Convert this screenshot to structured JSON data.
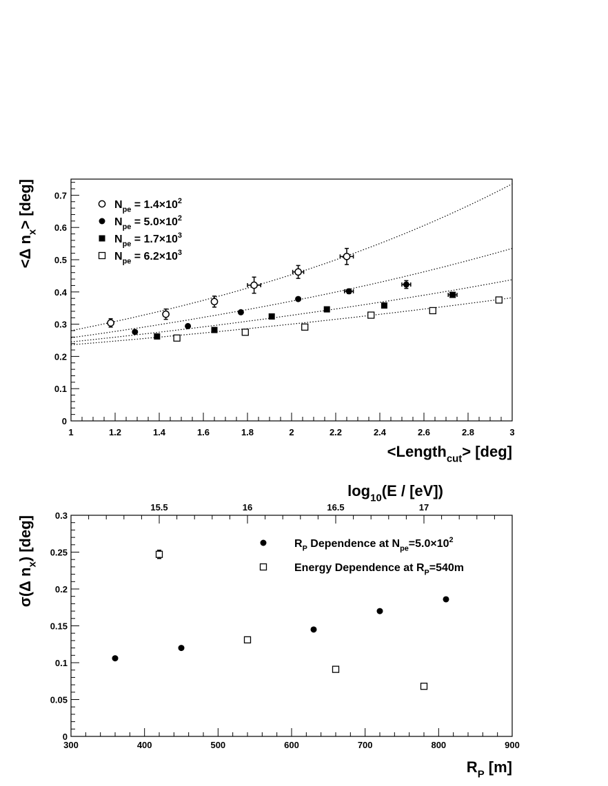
{
  "chart_data": [
    {
      "type": "scatter",
      "xlabel": "<Length_cut> [deg]",
      "ylabel": "<Δ n_x> [deg]",
      "xlim": [
        1,
        3
      ],
      "ylim": [
        0,
        0.75
      ],
      "x_ticks": [
        "1",
        "1.2",
        "1.4",
        "1.6",
        "1.8",
        "2",
        "2.2",
        "2.4",
        "2.6",
        "2.8",
        "3"
      ],
      "y_ticks": [
        "0",
        "0.1",
        "0.2",
        "0.3",
        "0.4",
        "0.5",
        "0.6",
        "0.7"
      ],
      "grid": false,
      "legend_position": "top-left",
      "series": [
        {
          "name": "N_pe = 1.4×10^2",
          "marker": "open-circle",
          "points": [
            [
              1.18,
              0.304
            ],
            [
              1.43,
              0.331
            ],
            [
              1.65,
              0.37
            ],
            [
              1.83,
              0.421
            ],
            [
              2.03,
              0.462
            ],
            [
              2.25,
              0.51
            ]
          ],
          "yerr": [
            0.013,
            0.016,
            0.017,
            0.025,
            0.02,
            0.025
          ],
          "xerr": [
            0,
            0,
            0,
            0.03,
            0.025,
            0.03
          ],
          "fit": [
            0.28,
            0.735
          ]
        },
        {
          "name": "N_pe = 5.0×10^2",
          "marker": "filled-circle",
          "points": [
            [
              1.29,
              0.276
            ],
            [
              1.53,
              0.294
            ],
            [
              1.77,
              0.337
            ],
            [
              2.03,
              0.378
            ],
            [
              2.26,
              0.402
            ],
            [
              2.52,
              0.423
            ]
          ],
          "yerr": [
            0,
            0,
            0,
            0,
            0.007,
            0.012
          ],
          "xerr": [
            0,
            0,
            0,
            0,
            0.02,
            0.02
          ],
          "fit": [
            0.258,
            0.535
          ]
        },
        {
          "name": "N_pe = 1.7×10^3",
          "marker": "filled-square",
          "points": [
            [
              1.39,
              0.262
            ],
            [
              1.65,
              0.282
            ],
            [
              1.91,
              0.324
            ],
            [
              2.16,
              0.346
            ],
            [
              2.42,
              0.358
            ],
            [
              2.73,
              0.391
            ]
          ],
          "yerr": [
            0,
            0,
            0,
            0,
            0,
            0
          ],
          "xerr": [
            0,
            0,
            0,
            0,
            0,
            0.02
          ],
          "fit": [
            0.245,
            0.438
          ]
        },
        {
          "name": "N_pe = 6.2×10^3",
          "marker": "open-square",
          "points": [
            [
              1.48,
              0.257
            ],
            [
              1.79,
              0.275
            ],
            [
              2.06,
              0.291
            ],
            [
              2.36,
              0.328
            ],
            [
              2.64,
              0.342
            ],
            [
              2.94,
              0.375
            ]
          ],
          "yerr": [
            0,
            0,
            0,
            0,
            0,
            0
          ],
          "xerr": [
            0,
            0,
            0,
            0,
            0,
            0
          ],
          "fit": [
            0.236,
            0.382
          ]
        }
      ]
    },
    {
      "type": "scatter",
      "xlabel": "R_P [m]",
      "ylabel": "σ(Δ n_x) [deg]",
      "top_axis_label": "log10(E / [eV])",
      "xlim": [
        300,
        900
      ],
      "ylim": [
        0,
        0.3
      ],
      "x_ticks": [
        "300",
        "400",
        "500",
        "600",
        "700",
        "800",
        "900"
      ],
      "y_ticks": [
        "0",
        "0.05",
        "0.1",
        "0.15",
        "0.2",
        "0.25",
        "0.3"
      ],
      "top_ticks": [
        "15.5",
        "16",
        "16.5",
        "17"
      ],
      "top_range": [
        15.0,
        17.5
      ],
      "grid": false,
      "legend_position": "top-right",
      "series": [
        {
          "name": "R_P Dependence at N_pe=5.0×10^2",
          "marker": "filled-circle",
          "axis": "bottom",
          "points": [
            [
              360,
              0.106
            ],
            [
              450,
              0.12
            ],
            [
              540,
              0.131
            ],
            [
              630,
              0.145
            ],
            [
              720,
              0.17
            ],
            [
              810,
              0.186
            ]
          ]
        },
        {
          "name": "Energy Dependence at R_P=540m",
          "marker": "open-square",
          "axis": "top",
          "points": [
            [
              15.5,
              0.247
            ],
            [
              16.0,
              0.131
            ],
            [
              16.5,
              0.091
            ],
            [
              17.0,
              0.068
            ]
          ]
        }
      ]
    }
  ]
}
